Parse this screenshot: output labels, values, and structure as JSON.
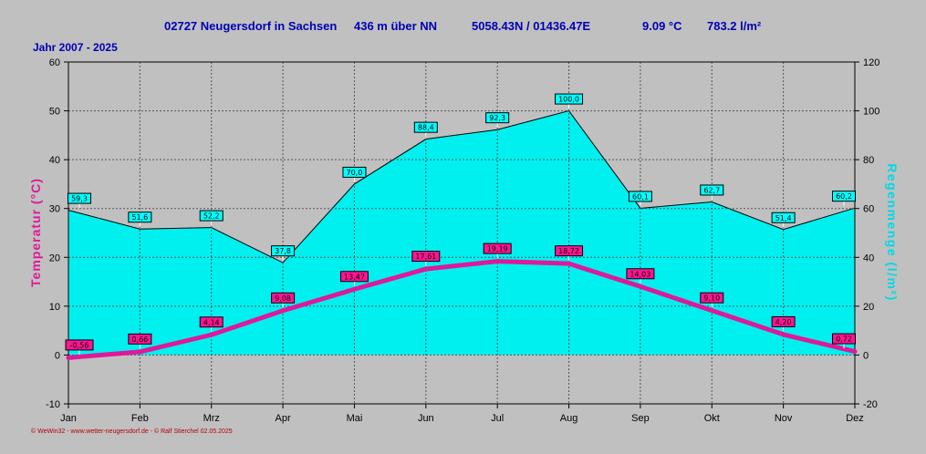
{
  "header": {
    "station": "02727 Neugersdorf in Sachsen",
    "altitude": "436 m über NN",
    "coords": "5058.43N / 01436.47E",
    "temp": "9.09 °C",
    "rain": "783.2 l/m²",
    "period": "Jahr  2007 - 2025"
  },
  "footer": "© WeWin32  -  www.wetter-neugersdorf.de  -  © Ralf Stierchel  02.05.2025",
  "colors": {
    "background": "#c0c0c0",
    "area": "#00f0f0",
    "temperature_line": "#e0189a",
    "temp_label": "#ff1493",
    "rain_label": "#00ffff",
    "header_text": "#0000b4"
  },
  "chart_data": {
    "type": "area",
    "categories": [
      "Jan",
      "Feb",
      "Mrz",
      "Apr",
      "Mai",
      "Jun",
      "Jul",
      "Aug",
      "Sep",
      "Okt",
      "Nov",
      "Dez"
    ],
    "ylabel_left": "Temperatur  (°C)",
    "ylabel_right": "Regenmenge  (l/m²)",
    "ylim_left": [
      -10,
      60
    ],
    "ylim_right": [
      -20,
      120
    ],
    "yticks_left": [
      60,
      50,
      40,
      30,
      20,
      10,
      0,
      -10
    ],
    "yticks_right": [
      120,
      100,
      80,
      60,
      40,
      20,
      0,
      -20
    ],
    "grid": true,
    "series": [
      {
        "axis": "right",
        "type": "area",
        "values": [
          59.3,
          51.6,
          52.2,
          37.8,
          70.0,
          88.4,
          92.3,
          100.0,
          60.1,
          62.7,
          51.4,
          60.2
        ],
        "labels": [
          "59,3",
          "51,6",
          "52,2",
          "37,8",
          "70,0",
          "88,4",
          "92,3",
          "100,0",
          "60,1",
          "62,7",
          "51,4",
          "60,2"
        ]
      },
      {
        "axis": "left",
        "type": "line",
        "values": [
          -0.56,
          0.66,
          4.14,
          9.08,
          13.47,
          17.61,
          19.19,
          18.72,
          14.03,
          9.1,
          4.2,
          0.72
        ],
        "labels": [
          "-0,56",
          "0,66",
          "4,14",
          "9,08",
          "13,47",
          "17,61",
          "19,19",
          "18,72",
          "14,03",
          "9,10",
          "4,20",
          "0,72"
        ]
      }
    ]
  }
}
